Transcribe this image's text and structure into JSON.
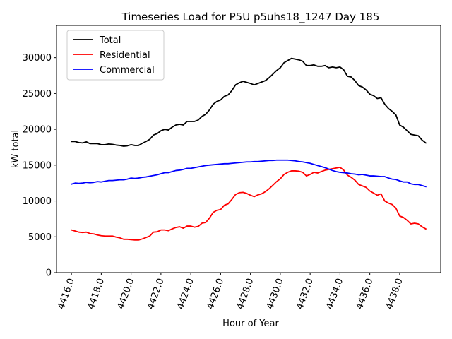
{
  "chart_data": {
    "type": "line",
    "title": "Timeseries Load for P5U p5uhs18_1247  Day 185",
    "xlabel": "Hour of Year",
    "ylabel": "kW total",
    "xlim": [
      4415.0,
      4440.75
    ],
    "ylim": [
      0,
      34500
    ],
    "xticks": [
      4416.0,
      4418.0,
      4420.0,
      4422.0,
      4424.0,
      4426.0,
      4428.0,
      4430.0,
      4432.0,
      4434.0,
      4436.0,
      4438.0
    ],
    "xtick_labels": [
      "4416.0",
      "4418.0",
      "4420.0",
      "4422.0",
      "4424.0",
      "4426.0",
      "4428.0",
      "4430.0",
      "4432.0",
      "4434.0",
      "4436.0",
      "4438.0"
    ],
    "yticks": [
      0,
      5000,
      10000,
      15000,
      20000,
      25000,
      30000
    ],
    "ytick_labels": [
      "0",
      "5000",
      "10000",
      "15000",
      "20000",
      "25000",
      "30000"
    ],
    "legend_position": "top-left",
    "series": [
      {
        "name": "Total",
        "color": "#000000",
        "x": [
          4416.0,
          4416.25,
          4416.5,
          4416.75,
          4417.0,
          4417.25,
          4417.5,
          4417.75,
          4418.0,
          4418.25,
          4418.5,
          4418.75,
          4419.0,
          4419.25,
          4419.5,
          4419.75,
          4420.0,
          4420.25,
          4420.5,
          4420.75,
          4421.0,
          4421.25,
          4421.5,
          4421.75,
          4422.0,
          4422.25,
          4422.5,
          4422.75,
          4423.0,
          4423.25,
          4423.5,
          4423.75,
          4424.0,
          4424.25,
          4424.5,
          4424.75,
          4425.0,
          4425.25,
          4425.5,
          4425.75,
          4426.0,
          4426.25,
          4426.5,
          4426.75,
          4427.0,
          4427.25,
          4427.5,
          4427.75,
          4428.0,
          4428.25,
          4428.5,
          4428.75,
          4429.0,
          4429.25,
          4429.5,
          4429.75,
          4430.0,
          4430.25,
          4430.5,
          4430.75,
          4431.0,
          4431.25,
          4431.5,
          4431.75,
          4432.0,
          4432.25,
          4432.5,
          4432.75,
          4433.0,
          4433.25,
          4433.5,
          4433.75,
          4434.0,
          4434.25,
          4434.5,
          4434.75,
          4435.0,
          4435.25,
          4435.5,
          4435.75,
          4436.0,
          4436.25,
          4436.5,
          4436.75,
          4437.0,
          4437.25,
          4437.5,
          4437.75,
          4438.0,
          4438.25,
          4438.5,
          4438.75,
          4439.0,
          4439.25,
          4439.5,
          4439.75
        ],
        "values": [
          18300,
          18300,
          18150,
          18100,
          18250,
          18000,
          18000,
          18000,
          17850,
          17850,
          17950,
          17900,
          17800,
          17750,
          17650,
          17700,
          17850,
          17750,
          17750,
          18050,
          18300,
          18600,
          19200,
          19400,
          19800,
          20000,
          19900,
          20300,
          20600,
          20700,
          20600,
          21100,
          21100,
          21100,
          21300,
          21800,
          22100,
          22700,
          23500,
          23900,
          24100,
          24600,
          24800,
          25400,
          26200,
          26500,
          26700,
          26550,
          26400,
          26200,
          26400,
          26600,
          26800,
          27200,
          27700,
          28200,
          28600,
          29300,
          29600,
          29900,
          29800,
          29700,
          29500,
          28900,
          28900,
          29000,
          28800,
          28800,
          28900,
          28600,
          28700,
          28600,
          28700,
          28300,
          27400,
          27300,
          26800,
          26100,
          25900,
          25500,
          24900,
          24700,
          24300,
          24400,
          23500,
          22900,
          22500,
          22000,
          20600,
          20300,
          19800,
          19300,
          19200,
          19100,
          18500,
          18100
        ]
      },
      {
        "name": "Residential",
        "color": "#ff0000",
        "x": [
          4416.0,
          4416.25,
          4416.5,
          4416.75,
          4417.0,
          4417.25,
          4417.5,
          4417.75,
          4418.0,
          4418.25,
          4418.5,
          4418.75,
          4419.0,
          4419.25,
          4419.5,
          4419.75,
          4420.0,
          4420.25,
          4420.5,
          4420.75,
          4421.0,
          4421.25,
          4421.5,
          4421.75,
          4422.0,
          4422.25,
          4422.5,
          4422.75,
          4423.0,
          4423.25,
          4423.5,
          4423.75,
          4424.0,
          4424.25,
          4424.5,
          4424.75,
          4425.0,
          4425.25,
          4425.5,
          4425.75,
          4426.0,
          4426.25,
          4426.5,
          4426.75,
          4427.0,
          4427.25,
          4427.5,
          4427.75,
          4428.0,
          4428.25,
          4428.5,
          4428.75,
          4429.0,
          4429.25,
          4429.5,
          4429.75,
          4430.0,
          4430.25,
          4430.5,
          4430.75,
          4431.0,
          4431.25,
          4431.5,
          4431.75,
          4432.0,
          4432.25,
          4432.5,
          4432.75,
          4433.0,
          4433.25,
          4433.5,
          4433.75,
          4434.0,
          4434.25,
          4434.5,
          4434.75,
          4435.0,
          4435.25,
          4435.5,
          4435.75,
          4436.0,
          4436.25,
          4436.5,
          4436.75,
          4437.0,
          4437.25,
          4437.5,
          4437.75,
          4438.0,
          4438.25,
          4438.5,
          4438.75,
          4439.0,
          4439.25,
          4439.5,
          4439.75
        ],
        "values": [
          5950,
          5800,
          5650,
          5600,
          5650,
          5450,
          5400,
          5250,
          5150,
          5100,
          5100,
          5100,
          4950,
          4850,
          4650,
          4650,
          4600,
          4550,
          4550,
          4700,
          4900,
          5100,
          5650,
          5700,
          5950,
          5950,
          5850,
          6100,
          6300,
          6400,
          6200,
          6500,
          6500,
          6350,
          6450,
          6900,
          7000,
          7600,
          8400,
          8700,
          8800,
          9400,
          9600,
          10200,
          10900,
          11150,
          11200,
          11050,
          10800,
          10600,
          10850,
          11000,
          11300,
          11700,
          12200,
          12700,
          13100,
          13700,
          14000,
          14200,
          14200,
          14150,
          14000,
          13500,
          13700,
          14000,
          13900,
          14100,
          14300,
          14400,
          14500,
          14600,
          14700,
          14300,
          13600,
          13300,
          12900,
          12300,
          12100,
          11900,
          11400,
          11100,
          10800,
          11000,
          10000,
          9700,
          9500,
          9000,
          7900,
          7700,
          7300,
          6800,
          6900,
          6800,
          6400,
          6100
        ]
      },
      {
        "name": "Commercial",
        "color": "#0000ff",
        "x": [
          4416.0,
          4416.25,
          4416.5,
          4416.75,
          4417.0,
          4417.25,
          4417.5,
          4417.75,
          4418.0,
          4418.25,
          4418.5,
          4418.75,
          4419.0,
          4419.25,
          4419.5,
          4419.75,
          4420.0,
          4420.25,
          4420.5,
          4420.75,
          4421.0,
          4421.25,
          4421.5,
          4421.75,
          4422.0,
          4422.25,
          4422.5,
          4422.75,
          4423.0,
          4423.25,
          4423.5,
          4423.75,
          4424.0,
          4424.25,
          4424.5,
          4424.75,
          4425.0,
          4425.25,
          4425.5,
          4425.75,
          4426.0,
          4426.25,
          4426.5,
          4426.75,
          4427.0,
          4427.25,
          4427.5,
          4427.75,
          4428.0,
          4428.25,
          4428.5,
          4428.75,
          4429.0,
          4429.25,
          4429.5,
          4429.75,
          4430.0,
          4430.25,
          4430.5,
          4430.75,
          4431.0,
          4431.25,
          4431.5,
          4431.75,
          4432.0,
          4432.25,
          4432.5,
          4432.75,
          4433.0,
          4433.25,
          4433.5,
          4433.75,
          4434.0,
          4434.25,
          4434.5,
          4434.75,
          4435.0,
          4435.25,
          4435.5,
          4435.75,
          4436.0,
          4436.25,
          4436.5,
          4436.75,
          4437.0,
          4437.25,
          4437.5,
          4437.75,
          4438.0,
          4438.25,
          4438.5,
          4438.75,
          4439.0,
          4439.25,
          4439.5,
          4439.75
        ],
        "values": [
          12350,
          12500,
          12450,
          12500,
          12600,
          12550,
          12600,
          12700,
          12650,
          12750,
          12850,
          12850,
          12900,
          12950,
          12950,
          13050,
          13200,
          13150,
          13200,
          13300,
          13350,
          13450,
          13550,
          13650,
          13800,
          13950,
          13950,
          14100,
          14250,
          14300,
          14400,
          14550,
          14550,
          14650,
          14750,
          14850,
          14950,
          15000,
          15050,
          15100,
          15150,
          15200,
          15200,
          15250,
          15300,
          15350,
          15400,
          15450,
          15450,
          15500,
          15500,
          15550,
          15600,
          15650,
          15650,
          15700,
          15700,
          15700,
          15700,
          15650,
          15600,
          15500,
          15450,
          15350,
          15250,
          15100,
          14950,
          14800,
          14650,
          14450,
          14250,
          14100,
          14000,
          13950,
          13900,
          13800,
          13750,
          13650,
          13700,
          13600,
          13500,
          13500,
          13450,
          13400,
          13400,
          13200,
          13050,
          13000,
          12800,
          12650,
          12650,
          12400,
          12300,
          12300,
          12150,
          12000
        ]
      }
    ]
  }
}
